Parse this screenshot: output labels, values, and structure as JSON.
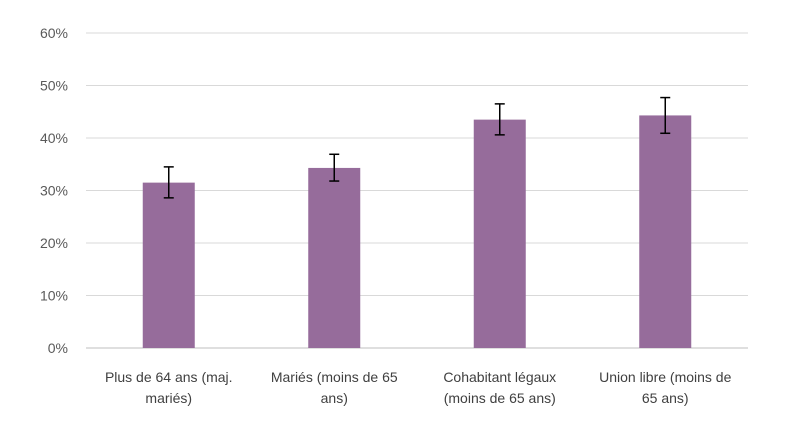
{
  "chart_data": {
    "type": "bar",
    "categories": [
      [
        "Plus de 64 ans (maj.",
        "mariés)"
      ],
      [
        "Mariés (moins de 65",
        "ans)"
      ],
      [
        "Cohabitant légaux",
        "(moins de 65 ans)"
      ],
      [
        "Union libre (moins de",
        "65 ans)"
      ]
    ],
    "values": [
      31.5,
      34.3,
      43.5,
      44.3
    ],
    "error_low": [
      28.6,
      31.8,
      40.6,
      40.9
    ],
    "error_high": [
      34.5,
      36.9,
      46.5,
      47.7
    ],
    "ylim": [
      0,
      60
    ],
    "yticks": [
      0,
      10,
      20,
      30,
      40,
      50,
      60
    ],
    "ytick_labels": [
      "0%",
      "10%",
      "20%",
      "30%",
      "40%",
      "50%",
      "60%"
    ],
    "grid": true,
    "colors": {
      "bar": "#966c9b",
      "grid": "#d9d9d9",
      "axis": "#bfbfbf",
      "error": "#000000"
    }
  }
}
